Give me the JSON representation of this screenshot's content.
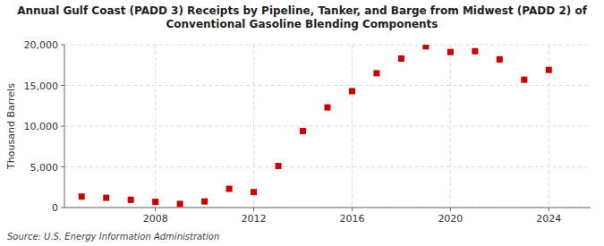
{
  "chart_data": {
    "type": "scatter",
    "title": "Annual Gulf Coast (PADD 3) Receipts by Pipeline, Tanker, and Barge from Midwest (PADD 2) of\nConventional Gasoline Blending Components",
    "y_label": "Thousand Barrels",
    "annotations": [
      "Source: U.S. Energy Information Administration"
    ],
    "x": [
      2005,
      2006,
      2007,
      2008,
      2009,
      2010,
      2011,
      2012,
      2013,
      2014,
      2015,
      2016,
      2017,
      2018,
      2019,
      2020,
      2021,
      2022,
      2023,
      2024
    ],
    "values": [
      1350,
      1200,
      950,
      700,
      450,
      750,
      2300,
      1900,
      5100,
      9400,
      12300,
      14300,
      16500,
      18300,
      19800,
      19100,
      19200,
      18200,
      15700,
      16900
    ],
    "color": "#cc0000",
    "marker": "square",
    "xlim": [
      2004.3,
      2025.7
    ],
    "xticks": [
      2008,
      2012,
      2016,
      2020,
      2024
    ],
    "ylim": [
      0,
      20000
    ],
    "yticks": [
      0,
      {
        "value": 5000,
        "label": "5,000"
      },
      {
        "value": 10000,
        "label": "10,000"
      },
      {
        "value": 15000,
        "label": "15,000"
      },
      {
        "value": 20000,
        "label": "20,000"
      }
    ],
    "grid": true
  }
}
